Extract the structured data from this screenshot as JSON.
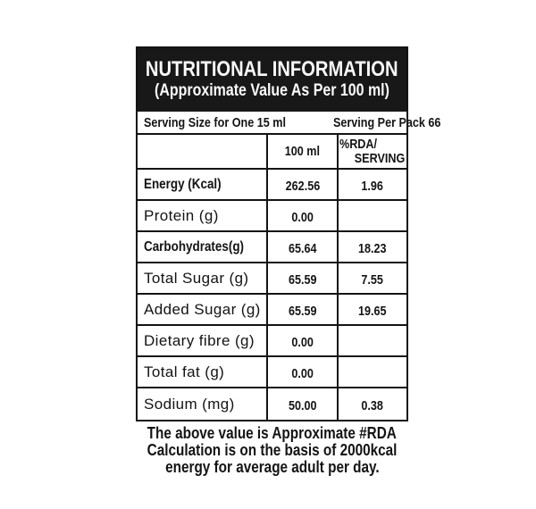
{
  "colors": {
    "header_bg": "#181818",
    "header_text": "#fafafa",
    "border": "#141414",
    "text": "#141414",
    "page_bg": "#ffffff"
  },
  "panel": {
    "title": "NUTRITIONAL INFORMATION",
    "subtitle": "(Approximate Value As Per 100 ml)",
    "serving_size_label": "Serving Size for One 15 ml",
    "serving_per_pack_label": "Serving Per Pack 66"
  },
  "table": {
    "columns": {
      "nutrient": "",
      "per_100ml": "100 ml",
      "rda_line1": "%RDA/",
      "rda_line2": "SERVING"
    },
    "rows": [
      {
        "label": "Energy (Kcal)",
        "value": "262.56",
        "rda": "1.96",
        "condensed": true
      },
      {
        "label": "Protein (g)",
        "value": "0.00",
        "rda": "",
        "condensed": false
      },
      {
        "label": "Carbohydrates(g)",
        "value": "65.64",
        "rda": "18.23",
        "condensed": true
      },
      {
        "label": "Total Sugar (g)",
        "value": "65.59",
        "rda": "7.55",
        "condensed": false
      },
      {
        "label": "Added Sugar (g)",
        "value": "65.59",
        "rda": "19.65",
        "condensed": false
      },
      {
        "label": "Dietary fibre (g)",
        "value": "0.00",
        "rda": "",
        "condensed": false
      },
      {
        "label": "Total fat (g)",
        "value": "0.00",
        "rda": "",
        "condensed": false
      },
      {
        "label": "Sodium (mg)",
        "value": "50.00",
        "rda": "0.38",
        "condensed": false
      }
    ]
  },
  "footer": {
    "lines": [
      "The above value is Approximate #RDA",
      "Calculation is on the basis of 2000kcal",
      "energy for average adult per day."
    ]
  }
}
